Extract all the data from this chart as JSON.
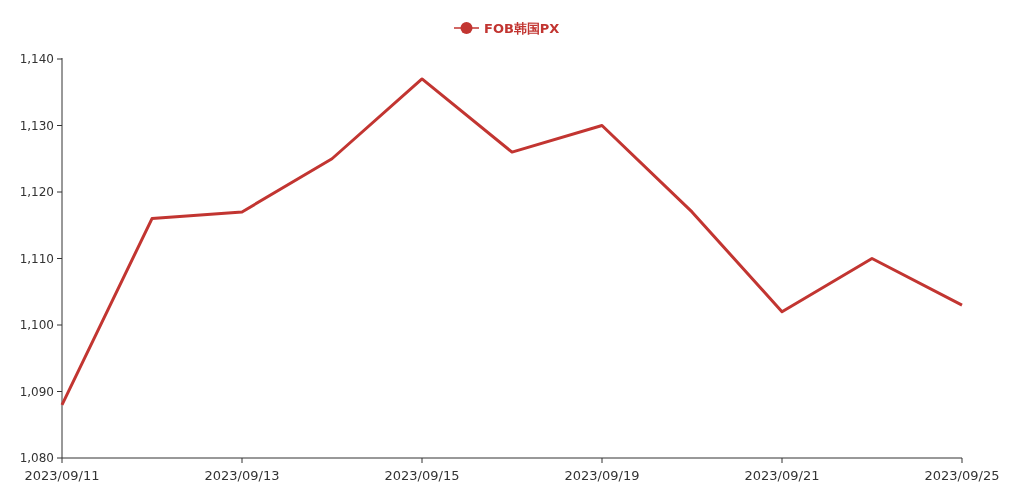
{
  "chart_data": {
    "type": "line",
    "categories": [
      "2023/09/11",
      null,
      "2023/09/13",
      null,
      "2023/09/15",
      null,
      "2023/09/19",
      null,
      "2023/09/21",
      null,
      "2023/09/25"
    ],
    "series": [
      {
        "name": "FOB韩国PX",
        "color": "#c23531",
        "values": [
          1088,
          1116,
          1117,
          1125,
          1137,
          1126,
          1130,
          1117,
          1102,
          1110,
          1103
        ]
      }
    ],
    "ylim": [
      1080,
      1140
    ],
    "yticks": [
      {
        "value": 1080,
        "label": "1,080"
      },
      {
        "value": 1090,
        "label": "1,090"
      },
      {
        "value": 1100,
        "label": "1,100"
      },
      {
        "value": 1110,
        "label": "1,110"
      },
      {
        "value": 1120,
        "label": "1,120"
      },
      {
        "value": 1130,
        "label": "1,130"
      },
      {
        "value": 1140,
        "label": "1,140"
      }
    ],
    "legend": "top",
    "marker": "none",
    "grid": false
  }
}
